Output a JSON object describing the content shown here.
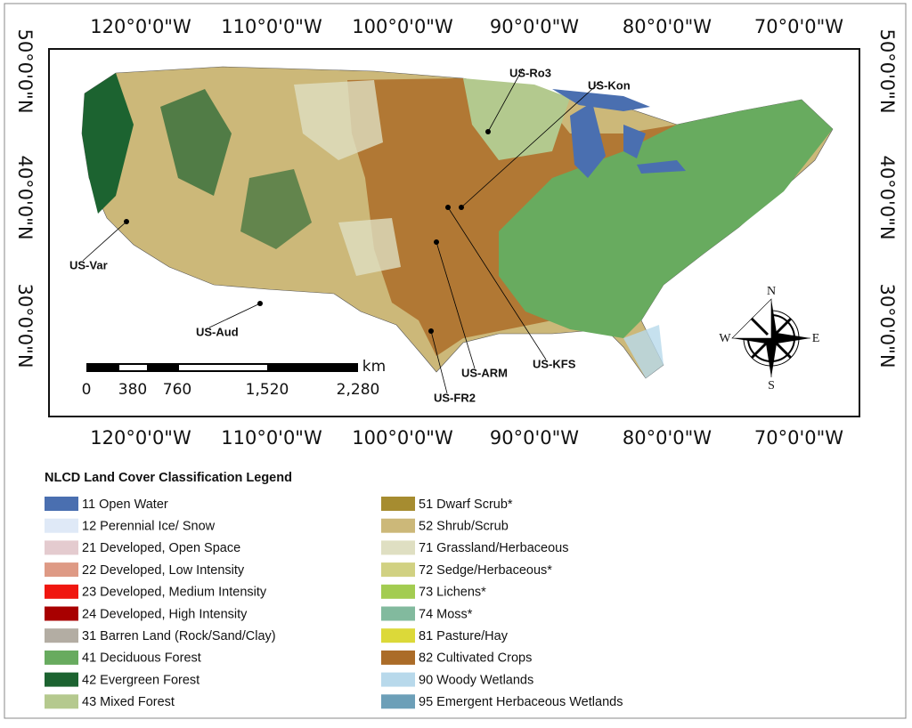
{
  "map": {
    "longitude_labels": [
      "120°0'0\"W",
      "110°0'0\"W",
      "100°0'0\"W",
      "90°0'0\"W",
      "80°0'0\"W",
      "70°0'0\"W"
    ],
    "latitude_labels": [
      "50°0'0\"N",
      "40°0'0\"N",
      "30°0'0\"N"
    ],
    "sites": [
      "US-Ro3",
      "US-Kon",
      "US-Var",
      "US-Aud",
      "US-ARM",
      "US-KFS",
      "US-FR2"
    ],
    "scale_bar": {
      "labels": [
        "0",
        "380",
        "760",
        "1,520",
        "2,280"
      ],
      "unit": "km"
    },
    "compass": {
      "north": "N",
      "east": "E",
      "south": "S",
      "west": "W"
    }
  },
  "legend": {
    "title": "NLCD Land Cover Classification Legend",
    "items": [
      {
        "label": "11 Open Water",
        "color": "#4a6fb0"
      },
      {
        "label": "12 Perennial Ice/ Snow",
        "color": "#dfe9f7"
      },
      {
        "label": "21 Developed, Open Space",
        "color": "#e4cbcf"
      },
      {
        "label": "22 Developed, Low Intensity",
        "color": "#de9a85"
      },
      {
        "label": "23 Developed, Medium Intensity",
        "color": "#f0160f"
      },
      {
        "label": "24 Developed, High Intensity",
        "color": "#a80000"
      },
      {
        "label": "31 Barren Land (Rock/Sand/Clay)",
        "color": "#b3ada3"
      },
      {
        "label": "41 Deciduous Forest",
        "color": "#68ab5f"
      },
      {
        "label": "42 Evergreen Forest",
        "color": "#1c6330"
      },
      {
        "label": "43 Mixed Forest",
        "color": "#b5c98e"
      },
      {
        "label": "51 Dwarf Scrub*",
        "color": "#a68c30"
      },
      {
        "label": "52 Shrub/Scrub",
        "color": "#ccb879"
      },
      {
        "label": "71 Grassland/Herbaceous",
        "color": "#dfdfc2"
      },
      {
        "label": "72 Sedge/Herbaceous*",
        "color": "#d1d182"
      },
      {
        "label": "73 Lichens*",
        "color": "#a3cc51"
      },
      {
        "label": "74 Moss*",
        "color": "#82ba9e"
      },
      {
        "label": "81 Pasture/Hay",
        "color": "#dcd939"
      },
      {
        "label": "82 Cultivated Crops",
        "color": "#ab6c28"
      },
      {
        "label": "90 Woody Wetlands",
        "color": "#b8d9eb"
      },
      {
        "label": "95 Emergent Herbaceous Wetlands",
        "color": "#6c9fb8"
      }
    ]
  }
}
